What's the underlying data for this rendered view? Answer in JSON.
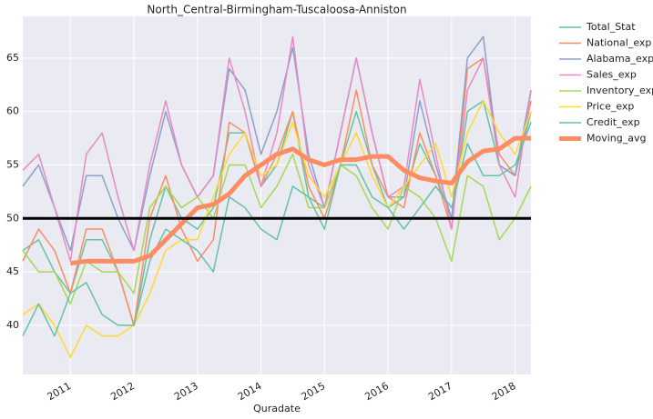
{
  "chart_data": {
    "type": "line",
    "title": "North_Central-Birmingham-Tuscaloosa-Anniston",
    "x_label": "Quradate",
    "x": [
      2010.25,
      2010.5,
      2010.75,
      2011,
      2011.25,
      2011.5,
      2011.75,
      2012,
      2012.25,
      2012.5,
      2012.75,
      2013,
      2013.25,
      2013.5,
      2013.75,
      2014,
      2014.25,
      2014.5,
      2014.75,
      2015,
      2015.25,
      2015.5,
      2015.75,
      2016,
      2016.25,
      2016.5,
      2016.75,
      2017,
      2017.25,
      2017.5,
      2017.75,
      2018,
      2018.25
    ],
    "xlim": [
      2010.25,
      2018.25
    ],
    "xticks": [
      2011,
      2012,
      2013,
      2014,
      2015,
      2016,
      2017,
      2018
    ],
    "ylim": [
      35.4,
      68.9
    ],
    "yticks": [
      40,
      45,
      50,
      55,
      60,
      65
    ],
    "grid": true,
    "hline": 50,
    "legend": "outside-upper-right",
    "series": [
      {
        "name": "Total_Stat",
        "color": "#66c2a5",
        "width": 1.5,
        "values": [
          47,
          48,
          45,
          43,
          48,
          48,
          45,
          40,
          48,
          53,
          50,
          49,
          51,
          58,
          58,
          53,
          55,
          60,
          52,
          51,
          55,
          60,
          55,
          51,
          52,
          57,
          54,
          50,
          60,
          61,
          55,
          54,
          60
        ]
      },
      {
        "name": "National_exp",
        "color": "#fc8d62",
        "width": 1.5,
        "values": [
          46,
          49,
          47,
          43,
          49,
          49,
          45,
          40,
          50,
          54,
          49,
          46,
          48,
          59,
          58,
          53,
          56,
          60,
          53,
          50,
          55,
          62,
          55,
          52,
          51,
          58,
          54,
          49,
          64,
          65,
          56,
          54,
          61
        ]
      },
      {
        "name": "Alabama_exp",
        "color": "#8da0cb",
        "width": 1.5,
        "values": [
          53,
          55,
          51,
          47,
          54,
          54,
          50,
          47,
          54,
          60,
          55,
          52,
          54,
          64,
          62,
          56,
          60,
          66,
          56,
          51,
          58,
          65,
          58,
          52,
          52,
          61,
          55,
          50,
          65,
          67,
          55,
          54,
          62
        ]
      },
      {
        "name": "Sales_exp",
        "color": "#e78ac3",
        "width": 1.5,
        "values": [
          54.5,
          56,
          51,
          46,
          56,
          58,
          52,
          47,
          55,
          61,
          55,
          52,
          54,
          65,
          60,
          53,
          58,
          67,
          55,
          51,
          58,
          65,
          58,
          52,
          53,
          63,
          56,
          49,
          62,
          65,
          55,
          52,
          62
        ]
      },
      {
        "name": "Inventory_exp",
        "color": "#a6d854",
        "width": 1.5,
        "values": [
          47,
          45,
          45,
          42,
          46,
          45,
          45,
          43,
          51,
          53,
          51,
          52,
          50,
          55,
          55,
          51,
          53,
          56,
          51,
          51,
          55,
          54,
          51,
          49,
          53,
          52,
          50,
          46,
          54,
          53,
          48,
          50,
          53
        ]
      },
      {
        "name": "Price_exp",
        "color": "#ffd92f",
        "width": 1.5,
        "values": [
          41,
          42,
          40,
          37,
          40,
          39,
          39,
          40,
          43,
          47,
          48,
          48,
          52,
          56,
          58,
          54,
          55,
          59,
          54,
          52,
          55,
          58,
          54,
          51,
          53,
          55,
          57,
          52,
          58,
          61,
          58,
          56,
          60
        ]
      },
      {
        "name": "Credit_exp",
        "color": "#66c2a5",
        "width": 1.5,
        "values": [
          39,
          42,
          39,
          43,
          44,
          41,
          40,
          40,
          46,
          49,
          48,
          47,
          45,
          52,
          51,
          49,
          48,
          53,
          52,
          49,
          55,
          55,
          52,
          51,
          49,
          51,
          53,
          51,
          57,
          54,
          54,
          55,
          59
        ]
      },
      {
        "name": "Moving_avg",
        "color": "#fc8d62",
        "width": 5,
        "values": [
          null,
          null,
          null,
          45.8,
          46,
          46,
          46,
          46,
          46.5,
          48,
          49.5,
          51,
          51.3,
          52.3,
          54,
          55,
          56,
          56.5,
          55.5,
          55,
          55.5,
          55.5,
          55.8,
          55.8,
          54.5,
          53.8,
          53.5,
          53.3,
          55.3,
          56.3,
          56.5,
          57.5,
          57.5
        ]
      }
    ]
  }
}
